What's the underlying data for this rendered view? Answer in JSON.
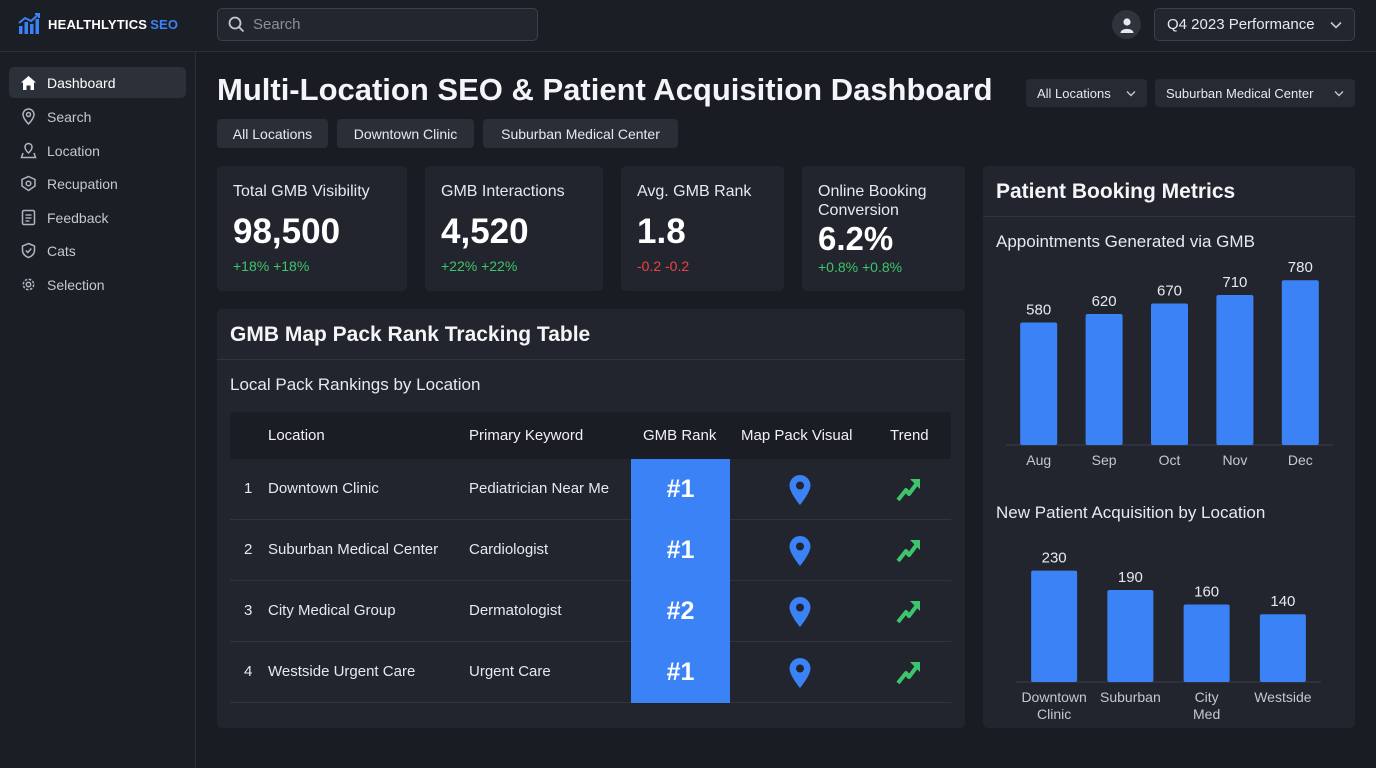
{
  "brand": {
    "name": "HEALTHLYTICS",
    "accent": "SEO"
  },
  "search": {
    "placeholder": "Search"
  },
  "period_selector": {
    "value": "Q4 2023 Performance"
  },
  "sidebar": {
    "items": [
      {
        "label": "Dashboard",
        "icon": "home-icon",
        "active": true
      },
      {
        "label": "Search",
        "icon": "map-pin-icon"
      },
      {
        "label": "Location",
        "icon": "location-icon"
      },
      {
        "label": "Recupation",
        "icon": "badge-icon"
      },
      {
        "label": "Feedback",
        "icon": "feedback-icon"
      },
      {
        "label": "Cats",
        "icon": "shield-icon"
      },
      {
        "label": "Selection",
        "icon": "gear-icon"
      }
    ]
  },
  "main": {
    "title": "Multi-Location SEO & Patient Acquisition Dashboard",
    "dropdowns": [
      "All Locations",
      "Suburban Medical Center"
    ],
    "chips": [
      "All Locations",
      "Downtown Clinic",
      "Suburban Medical Center"
    ]
  },
  "kpis": [
    {
      "label": "Total GMB Visibility",
      "value": "98,500",
      "delta": "+18% +18%",
      "trend": "positive"
    },
    {
      "label": "GMB Interactions",
      "value": "4,520",
      "delta": "+22% +22%",
      "trend": "positive"
    },
    {
      "label": "Avg. GMB Rank",
      "value": "1.8",
      "delta": "-0.2 -0.2",
      "trend": "negative"
    },
    {
      "label": "Online Booking Conversion",
      "value": "6.2%",
      "delta": "+0.8% +0.8%",
      "trend": "positive"
    }
  ],
  "rank_table": {
    "title": "GMB Map Pack Rank Tracking Table",
    "subtitle": "Local Pack Rankings by Location",
    "columns": [
      "Location",
      "Primary Keyword",
      "GMB Rank",
      "Map Pack Visual",
      "Trend"
    ],
    "rows": [
      {
        "num": "1",
        "location": "Downtown Clinic",
        "keyword": "Pediatrician Near Me",
        "rank": "#1"
      },
      {
        "num": "2",
        "location": "Suburban Medical Center",
        "keyword": "Cardiologist",
        "rank": "#1"
      },
      {
        "num": "3",
        "location": "City Medical Group",
        "keyword": "Dermatologist",
        "rank": "#2"
      },
      {
        "num": "4",
        "location": "Westside Urgent Care",
        "keyword": "Urgent Care",
        "rank": "#1"
      }
    ]
  },
  "booking_panel": {
    "title": "Patient Booking Metrics"
  },
  "colors": {
    "accent": "#3b82f6",
    "positive": "#3ec46d",
    "negative": "#ef4444"
  },
  "chart_data": [
    {
      "type": "bar",
      "title": "Appointments Generated via GMB",
      "categories": [
        "Aug",
        "Sep",
        "Oct",
        "Nov",
        "Dec"
      ],
      "values": [
        580,
        620,
        670,
        710,
        780
      ],
      "ylim": [
        0,
        800
      ],
      "grid": false,
      "color": "#3b82f6"
    },
    {
      "type": "bar",
      "title": "New Patient Acquisition by Location",
      "categories": [
        "Downtown Clinic",
        "Suburban",
        "City Med",
        "Westside"
      ],
      "values": [
        230,
        190,
        160,
        140
      ],
      "ylim": [
        0,
        250
      ],
      "grid": false,
      "color": "#3b82f6"
    }
  ]
}
